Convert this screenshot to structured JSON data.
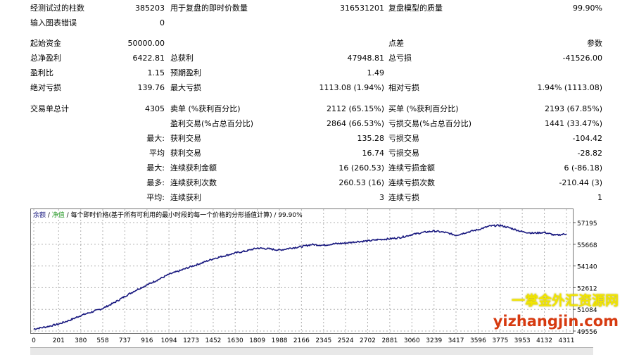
{
  "rows": [
    {
      "cells": [
        {
          "t": "经测试过的柱数",
          "x": 43,
          "y": 5
        },
        {
          "t": "385203",
          "x": 234,
          "y": 5,
          "r": 1
        },
        {
          "t": "用于复盘的即时价数量",
          "x": 242,
          "y": 5
        },
        {
          "t": "316531201",
          "x": 546,
          "y": 5,
          "r": 1
        },
        {
          "t": "复盘模型的质量",
          "x": 552,
          "y": 5
        },
        {
          "t": "99.90%",
          "x": 856,
          "y": 5,
          "r": 1
        }
      ]
    },
    {
      "cells": [
        {
          "t": "输入图表错误",
          "x": 43,
          "y": 26
        },
        {
          "t": "0",
          "x": 234,
          "y": 26,
          "r": 1
        }
      ]
    },
    {
      "cells": [
        {
          "t": "起始资金",
          "x": 43,
          "y": 55
        },
        {
          "t": "50000.00",
          "x": 234,
          "y": 55,
          "r": 1
        },
        {
          "t": "点差",
          "x": 552,
          "y": 55
        },
        {
          "t": "参数",
          "x": 856,
          "y": 55,
          "r": 1
        }
      ]
    },
    {
      "cells": [
        {
          "t": "总净盈利",
          "x": 43,
          "y": 76
        },
        {
          "t": "6422.81",
          "x": 234,
          "y": 76,
          "r": 1
        },
        {
          "t": "总获利",
          "x": 242,
          "y": 76
        },
        {
          "t": "47948.81",
          "x": 546,
          "y": 76,
          "r": 1
        },
        {
          "t": "总亏损",
          "x": 552,
          "y": 76
        },
        {
          "t": "-41526.00",
          "x": 856,
          "y": 76,
          "r": 1
        }
      ]
    },
    {
      "cells": [
        {
          "t": "盈利比",
          "x": 43,
          "y": 97
        },
        {
          "t": "1.15",
          "x": 234,
          "y": 97,
          "r": 1
        },
        {
          "t": "预期盈利",
          "x": 242,
          "y": 97
        },
        {
          "t": "1.49",
          "x": 546,
          "y": 97,
          "r": 1
        }
      ]
    },
    {
      "cells": [
        {
          "t": "绝对亏损",
          "x": 43,
          "y": 118
        },
        {
          "t": "139.76",
          "x": 234,
          "y": 118,
          "r": 1
        },
        {
          "t": "最大亏损",
          "x": 242,
          "y": 118
        },
        {
          "t": "1113.08 (1.94%)",
          "x": 546,
          "y": 118,
          "r": 1
        },
        {
          "t": "相对亏损",
          "x": 552,
          "y": 118
        },
        {
          "t": "1.94% (1113.08)",
          "x": 856,
          "y": 118,
          "r": 1
        }
      ]
    },
    {
      "cells": [
        {
          "t": "交易单总计",
          "x": 43,
          "y": 148
        },
        {
          "t": "4305",
          "x": 234,
          "y": 148,
          "r": 1
        },
        {
          "t": "卖单 (%获利百分比)",
          "x": 242,
          "y": 148
        },
        {
          "t": "2112 (65.15%)",
          "x": 546,
          "y": 148,
          "r": 1
        },
        {
          "t": "买单 (%获利百分比)",
          "x": 552,
          "y": 148
        },
        {
          "t": "2193 (67.85%)",
          "x": 856,
          "y": 148,
          "r": 1
        }
      ]
    },
    {
      "cells": [
        {
          "t": "盈利交易(%占总百分比)",
          "x": 242,
          "y": 169
        },
        {
          "t": "2864 (66.53%)",
          "x": 546,
          "y": 169,
          "r": 1
        },
        {
          "t": "亏损交易(%占总百分比)",
          "x": 552,
          "y": 169
        },
        {
          "t": "1441 (33.47%)",
          "x": 856,
          "y": 169,
          "r": 1
        }
      ]
    },
    {
      "cells": [
        {
          "t": "最大:",
          "x": 234,
          "y": 190,
          "r": 1
        },
        {
          "t": "获利交易",
          "x": 242,
          "y": 190
        },
        {
          "t": "135.28",
          "x": 546,
          "y": 190,
          "r": 1
        },
        {
          "t": "亏损交易",
          "x": 552,
          "y": 190
        },
        {
          "t": "-104.42",
          "x": 856,
          "y": 190,
          "r": 1
        }
      ]
    },
    {
      "cells": [
        {
          "t": "平均",
          "x": 234,
          "y": 211,
          "r": 1
        },
        {
          "t": "获利交易",
          "x": 242,
          "y": 211
        },
        {
          "t": "16.74",
          "x": 546,
          "y": 211,
          "r": 1
        },
        {
          "t": "亏损交易",
          "x": 552,
          "y": 211
        },
        {
          "t": "-28.82",
          "x": 856,
          "y": 211,
          "r": 1
        }
      ]
    },
    {
      "cells": [
        {
          "t": "最大:",
          "x": 234,
          "y": 232,
          "r": 1
        },
        {
          "t": "连续获利金额",
          "x": 242,
          "y": 232
        },
        {
          "t": "16 (260.53)",
          "x": 546,
          "y": 232,
          "r": 1
        },
        {
          "t": "连续亏损金额",
          "x": 552,
          "y": 232
        },
        {
          "t": "6 (-86.18)",
          "x": 856,
          "y": 232,
          "r": 1
        }
      ]
    },
    {
      "cells": [
        {
          "t": "最多:",
          "x": 234,
          "y": 253,
          "r": 1
        },
        {
          "t": "连续获利次数",
          "x": 242,
          "y": 253
        },
        {
          "t": "260.53 (16)",
          "x": 546,
          "y": 253,
          "r": 1
        },
        {
          "t": "连续亏损次数",
          "x": 552,
          "y": 253
        },
        {
          "t": "-210.44 (3)",
          "x": 856,
          "y": 253,
          "r": 1
        }
      ]
    },
    {
      "cells": [
        {
          "t": "平均:",
          "x": 234,
          "y": 274,
          "r": 1
        },
        {
          "t": "连续获利",
          "x": 242,
          "y": 274
        },
        {
          "t": "3",
          "x": 546,
          "y": 274,
          "r": 1
        },
        {
          "t": "连续亏损",
          "x": 552,
          "y": 274
        },
        {
          "t": "1",
          "x": 856,
          "y": 274,
          "r": 1
        }
      ]
    }
  ],
  "chart_header": {
    "balance": "余额",
    "sep1": " / ",
    "equity": "净值",
    "rest": " / 每个即时价格(基于所有可利用的最小时段的每一个价格的分形插值计算) / 99.90%"
  },
  "chart_data": {
    "type": "line",
    "x_ticks": [
      "0",
      "201",
      "380",
      "558",
      "737",
      "916",
      "1094",
      "1273",
      "1452",
      "1630",
      "1809",
      "1988",
      "2166",
      "2345",
      "2524",
      "2702",
      "2881",
      "3060",
      "3239",
      "3417",
      "3596",
      "3775",
      "3953",
      "4132",
      "4311"
    ],
    "y_ticks": [
      "57195",
      "55668",
      "54140",
      "52612",
      "51084",
      "49556"
    ],
    "ylim": [
      49556,
      57195
    ],
    "xlim": [
      0,
      4311
    ],
    "line_color": "#1a1a80",
    "grid": true,
    "series": [
      {
        "x": [
          0,
          100,
          201,
          300,
          380,
          470,
          558,
          650,
          737,
          830,
          916,
          1000,
          1094,
          1180,
          1273,
          1360,
          1452,
          1540,
          1630,
          1720,
          1809,
          1900,
          1988,
          2080,
          2166,
          2250,
          2345,
          2430,
          2524,
          2610,
          2702,
          2790,
          2881,
          2970,
          3060,
          3150,
          3239,
          3330,
          3417,
          3500,
          3596,
          3690,
          3775,
          3860,
          3953,
          4040,
          4132,
          4220,
          4311
        ],
        "values": [
          49700,
          49850,
          50050,
          50350,
          50650,
          50900,
          51150,
          51550,
          52000,
          52450,
          52800,
          53150,
          53550,
          53800,
          54100,
          54350,
          54650,
          54850,
          55050,
          55200,
          55400,
          55350,
          55250,
          55400,
          55500,
          55650,
          55600,
          55700,
          55750,
          55850,
          55900,
          56000,
          56050,
          56150,
          56350,
          56500,
          56600,
          56500,
          56300,
          56500,
          56700,
          56950,
          57000,
          56800,
          56550,
          56450,
          56500,
          56300,
          56400
        ]
      }
    ]
  },
  "watermark": {
    "line1": "一掌金外汇资源网",
    "line2": "yizhangjin.com",
    "line1_color": "#f2e600",
    "line2_color": "#d63a10"
  },
  "colors": {
    "balance_label": "#1a1a80",
    "equity_label": "#2a9a2a",
    "grid": "#b0b0b0"
  }
}
